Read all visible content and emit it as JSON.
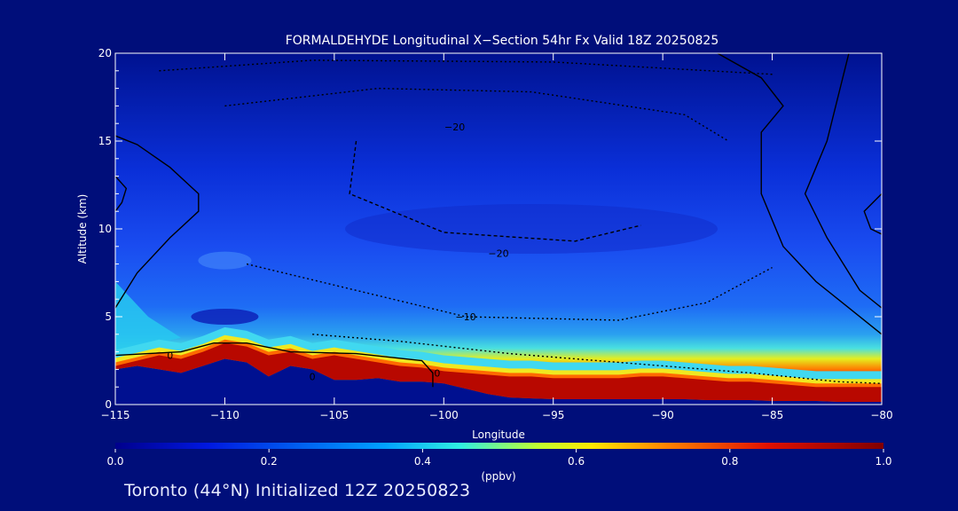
{
  "chart_data": {
    "type": "heatmap",
    "title": "FORMALDEHYDE Longitudinal X−Section 54hr  Fx Valid 18Z 20250825",
    "xlabel": "Longitude",
    "ylabel": "Altitude (km)",
    "xlim": [
      -115,
      -80
    ],
    "ylim": [
      0,
      20
    ],
    "x_ticks": [
      -115,
      -110,
      -105,
      -100,
      -95,
      -90,
      -85,
      -80
    ],
    "x_tick_labels": [
      "−115",
      "−110",
      "−105",
      "−100",
      "−95",
      "−90",
      "−85",
      "−80"
    ],
    "y_ticks": [
      0,
      5,
      10,
      15,
      20
    ],
    "y_tick_labels": [
      "0",
      "5",
      "10",
      "15",
      "20"
    ],
    "colorbar": {
      "range": [
        0.0,
        1.0
      ],
      "ticks": [
        0.0,
        0.2,
        0.4,
        0.6,
        0.8,
        1.0
      ],
      "tick_labels": [
        "0.0",
        "0.2",
        "0.4",
        "0.6",
        "0.8",
        "1.0"
      ],
      "unit_label": "(ppbv)"
    },
    "boundary_layer_top_km": [
      [
        -115,
        2.2
      ],
      [
        -113,
        2.8
      ],
      [
        -112,
        2.6
      ],
      [
        -111,
        3.0
      ],
      [
        -110,
        3.5
      ],
      [
        -109,
        3.3
      ],
      [
        -108,
        2.8
      ],
      [
        -107,
        3.0
      ],
      [
        -106,
        2.6
      ],
      [
        -105,
        2.8
      ],
      [
        -104,
        2.6
      ],
      [
        -103,
        2.4
      ],
      [
        -102,
        2.2
      ],
      [
        -101,
        2.1
      ],
      [
        -100,
        1.9
      ],
      [
        -99,
        1.8
      ],
      [
        -98,
        1.7
      ],
      [
        -97,
        1.6
      ],
      [
        -96,
        1.6
      ],
      [
        -95,
        1.5
      ],
      [
        -94,
        1.5
      ],
      [
        -93,
        1.5
      ],
      [
        -92,
        1.5
      ],
      [
        -91,
        1.6
      ],
      [
        -90,
        1.6
      ],
      [
        -89,
        1.5
      ],
      [
        -88,
        1.4
      ],
      [
        -87,
        1.3
      ],
      [
        -86,
        1.3
      ],
      [
        -85,
        1.2
      ],
      [
        -84,
        1.1
      ],
      [
        -83,
        1.0
      ],
      [
        -82,
        1.0
      ],
      [
        -81,
        1.0
      ],
      [
        -80,
        1.0
      ]
    ],
    "terrain_km": [
      [
        -115,
        2.0
      ],
      [
        -114,
        2.2
      ],
      [
        -113,
        2.0
      ],
      [
        -112,
        1.8
      ],
      [
        -111,
        2.2
      ],
      [
        -110,
        2.6
      ],
      [
        -109,
        2.4
      ],
      [
        -108,
        1.6
      ],
      [
        -107,
        2.2
      ],
      [
        -106,
        2.0
      ],
      [
        -105,
        1.4
      ],
      [
        -104,
        1.4
      ],
      [
        -103,
        1.5
      ],
      [
        -102,
        1.3
      ],
      [
        -101,
        1.3
      ],
      [
        -100,
        1.2
      ],
      [
        -99,
        0.9
      ],
      [
        -98,
        0.6
      ],
      [
        -97,
        0.4
      ],
      [
        -96,
        0.35
      ],
      [
        -95,
        0.3
      ],
      [
        -94,
        0.3
      ],
      [
        -93,
        0.3
      ],
      [
        -92,
        0.3
      ],
      [
        -91,
        0.3
      ],
      [
        -90,
        0.3
      ],
      [
        -89,
        0.3
      ],
      [
        -88,
        0.25
      ],
      [
        -87,
        0.25
      ],
      [
        -86,
        0.25
      ],
      [
        -85,
        0.2
      ],
      [
        -84,
        0.2
      ],
      [
        -83,
        0.2
      ],
      [
        -82,
        0.15
      ],
      [
        -81,
        0.15
      ],
      [
        -80,
        0.15
      ]
    ],
    "contour_labels": [
      {
        "text": "−20",
        "lon": -99.5,
        "alt": 15.6
      },
      {
        "text": "−20",
        "lon": -97.5,
        "alt": 8.4
      },
      {
        "text": "−10",
        "lon": -99.0,
        "alt": 4.8
      },
      {
        "text": "0",
        "lon": -112.5,
        "alt": 2.6
      },
      {
        "text": "0",
        "lon": -100.3,
        "alt": 1.6
      },
      {
        "text": "0",
        "lon": -106.0,
        "alt": 1.4
      }
    ]
  },
  "footer": {
    "text": "Toronto (44°N) Initialized 12Z 20250823"
  }
}
